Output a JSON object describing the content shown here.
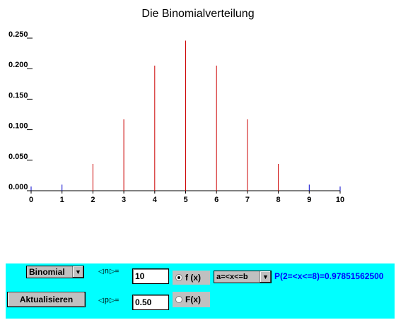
{
  "chart_data": {
    "type": "bar",
    "title": "Die Binomialverteilung",
    "x": [
      0,
      1,
      2,
      3,
      4,
      5,
      6,
      7,
      8,
      9,
      10
    ],
    "values": [
      0.001,
      0.01,
      0.044,
      0.117,
      0.205,
      0.246,
      0.205,
      0.117,
      0.044,
      0.01,
      0.001
    ],
    "highlight_range": [
      2,
      8
    ],
    "xticks": [
      "0",
      "1",
      "2",
      "3",
      "4",
      "5",
      "6",
      "7",
      "8",
      "9",
      "10"
    ],
    "yticks": [
      "0.000",
      "0.050",
      "0.100",
      "0.150",
      "0.200",
      "0.250"
    ],
    "ylim": [
      0,
      0.25
    ],
    "xlim": [
      0,
      10
    ],
    "grid": false,
    "colors": {
      "highlight": "#cc0000",
      "other": "#0000cc",
      "axis": "#000000"
    }
  },
  "controls": {
    "distribution": "Binomial",
    "update_label": "Aktualisieren",
    "n_label": "n",
    "n_value": "10",
    "p_label": "p",
    "p_value": "0.50",
    "fx_label": "f (x)",
    "Fx_label": "F(x)",
    "interval": "a=<x<=b",
    "result": "P(2=<x<=8)=0.97851562500"
  },
  "colors": {
    "panel": "#00ffff",
    "control": "#c0c0c0",
    "result": "#0000ff"
  }
}
